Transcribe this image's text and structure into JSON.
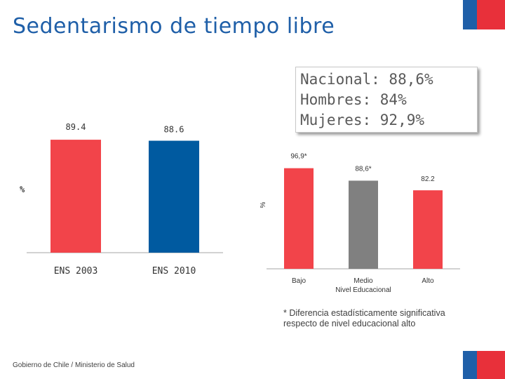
{
  "slide": {
    "title": "Sedentarismo de tiempo libre",
    "summary_lines": [
      "Nacional: 88,6%",
      "Hombres: 84%",
      "Mujeres: 92,9%"
    ],
    "footnote_lines": [
      "* Diferencia estadísticamente significativa",
      "respecto de  nivel educacional alto"
    ],
    "footer": "Gobierno de Chile / Ministerio de Salud",
    "flag_colors": {
      "blue": "#1f5fa8",
      "red": "#e8303a"
    }
  },
  "chart_data": [
    {
      "type": "bar",
      "title": "",
      "ylabel": "%",
      "xlabel": "",
      "categories": [
        "ENS 2003",
        "ENS 2010"
      ],
      "values": [
        89.4,
        88.6
      ],
      "data_labels": [
        "89.4",
        "88.6"
      ],
      "colors": [
        "#f2444a",
        "#005aa0"
      ],
      "ylim": [
        0,
        100
      ]
    },
    {
      "type": "bar",
      "title": "",
      "ylabel": "%",
      "xlabel": "Nivel Educacional",
      "categories": [
        "Bajo",
        "Medio",
        "Alto"
      ],
      "values": [
        96.9,
        88.6,
        82.2
      ],
      "data_labels": [
        "96,9*",
        "88,6*",
        "82.2"
      ],
      "colors": [
        "#f2444a",
        "#808080",
        "#f2444a"
      ],
      "ylim": [
        30,
        100
      ]
    }
  ]
}
